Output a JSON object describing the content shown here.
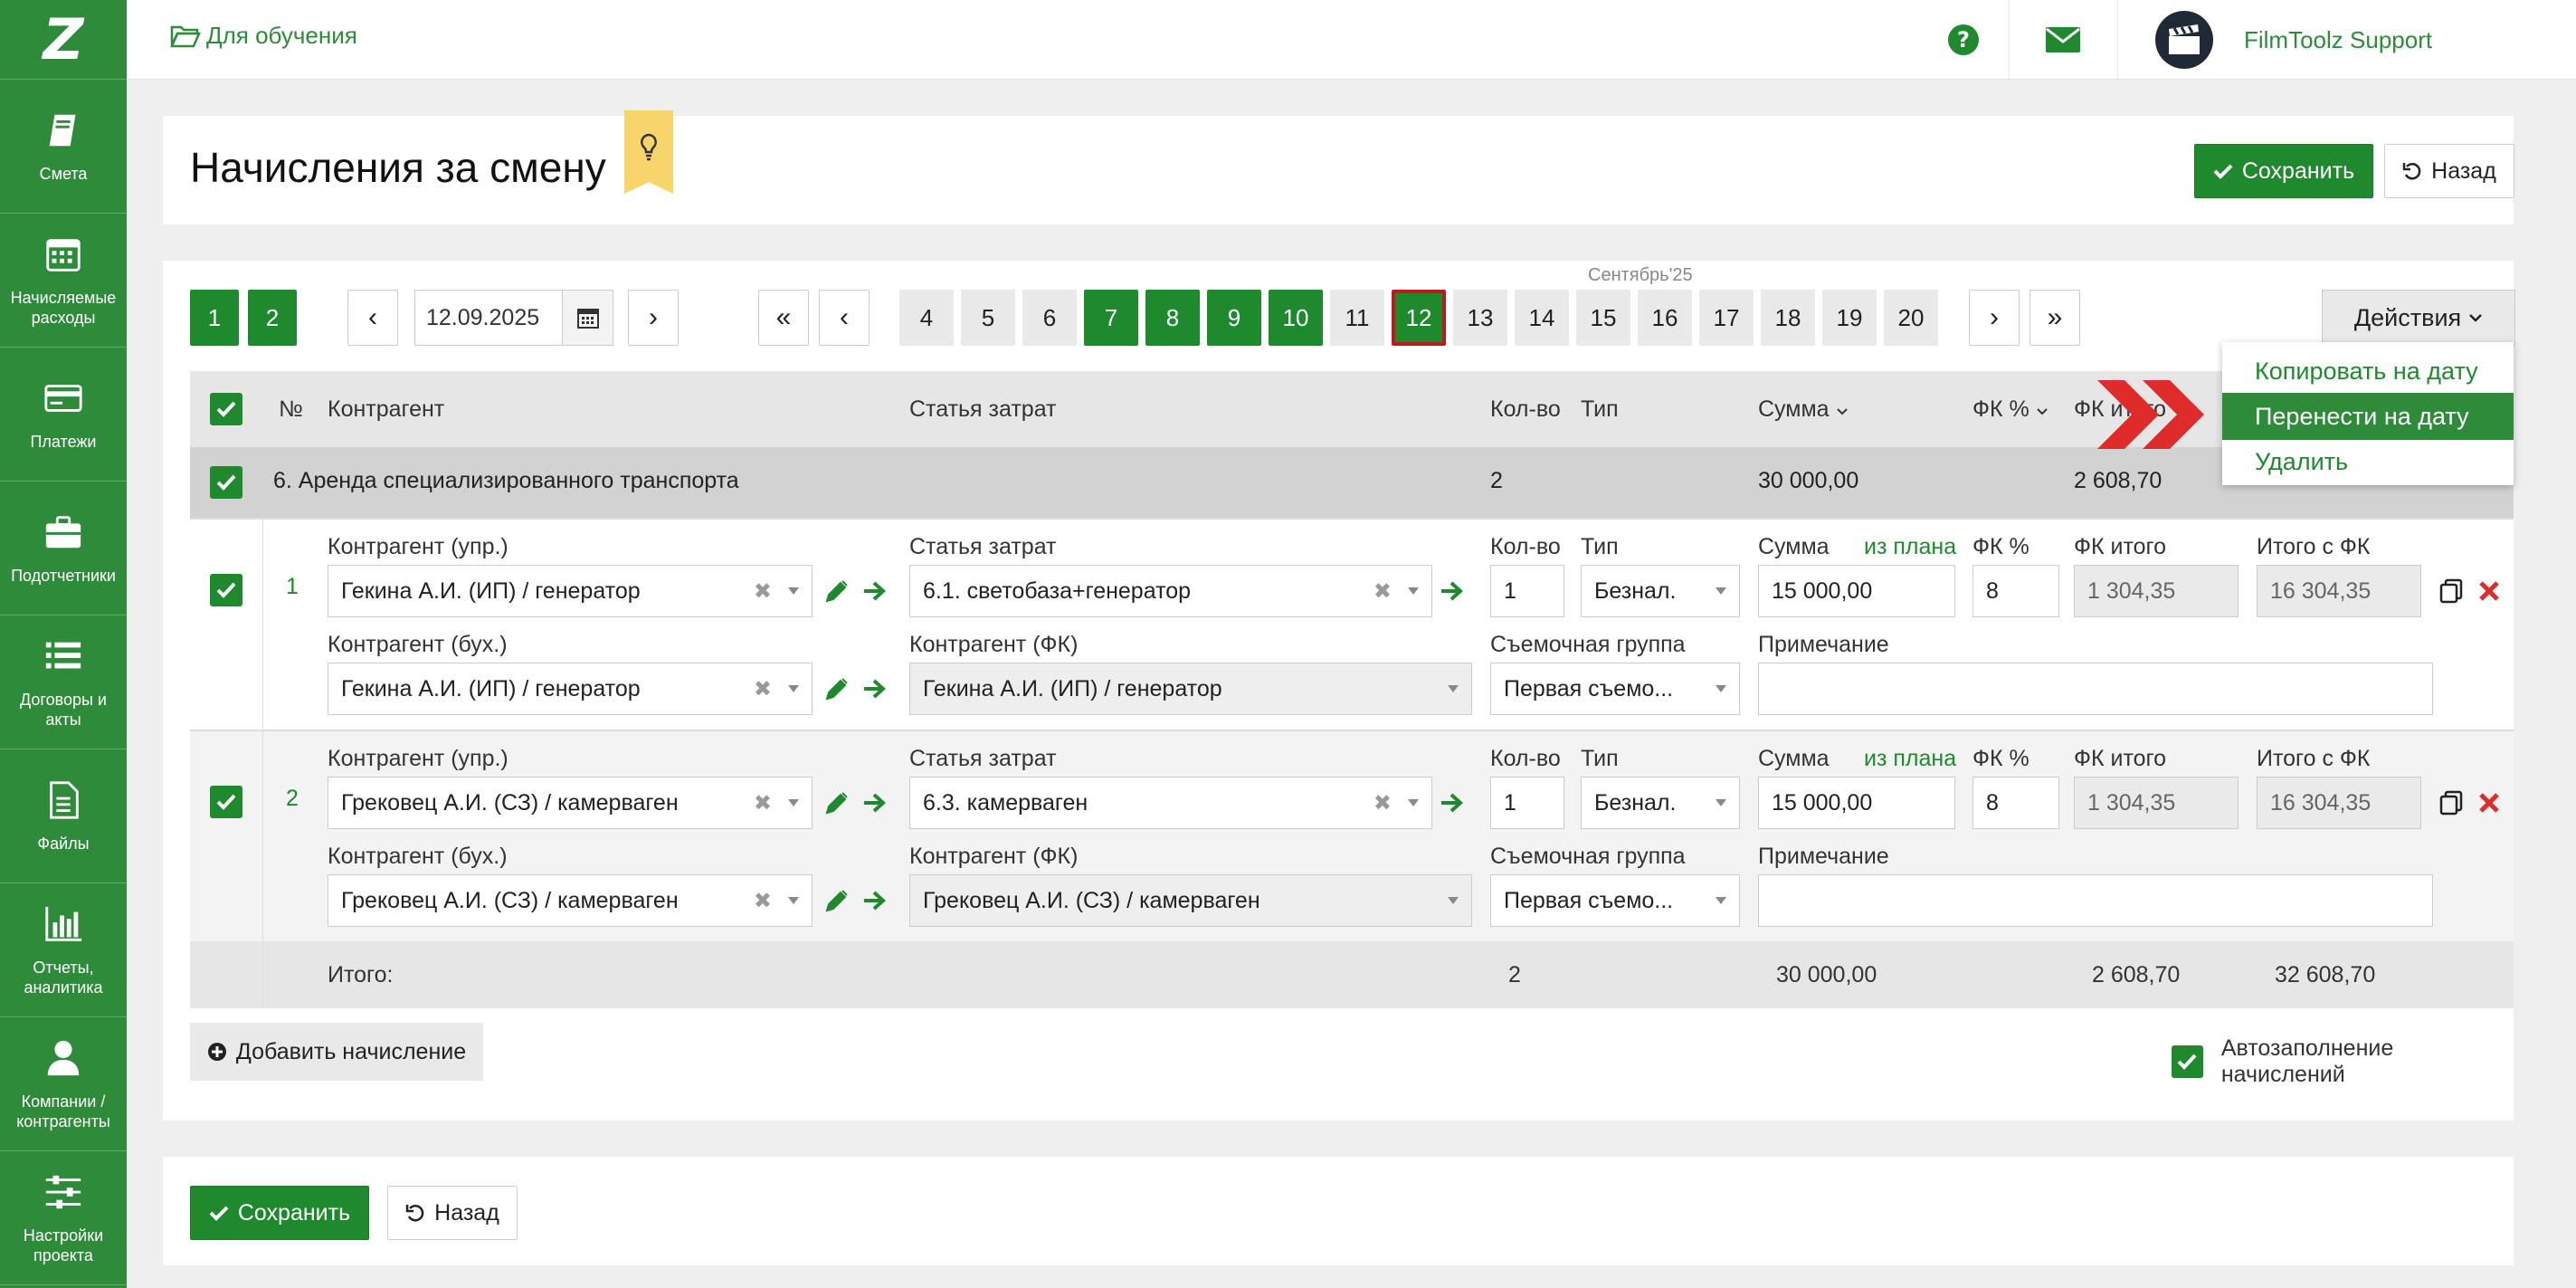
{
  "sidebar": {
    "logo": "Z",
    "items": [
      {
        "label": "Смета",
        "icon": "book-icon"
      },
      {
        "label": "Начисляемые расходы",
        "icon": "calendar-icon"
      },
      {
        "label": "Платежи",
        "icon": "card-icon"
      },
      {
        "label": "Подотчетники",
        "icon": "briefcase-icon"
      },
      {
        "label": "Договоры и акты",
        "icon": "list-icon"
      },
      {
        "label": "Файлы",
        "icon": "file-icon"
      },
      {
        "label": "Отчеты, аналитика",
        "icon": "bar-chart-icon"
      },
      {
        "label": "Компании / контрагенты",
        "icon": "user-icon"
      },
      {
        "label": "Настройки проекта",
        "icon": "sliders-icon"
      }
    ]
  },
  "topbar": {
    "project": "Для обучения",
    "support_name": "FilmToolz Support",
    "lang": "RU"
  },
  "header": {
    "title": "Начисления за смену",
    "save": "Сохранить",
    "back": "Назад"
  },
  "paging": {
    "pages": [
      "1",
      "2"
    ],
    "date": "12.09.2025",
    "month": "Сентябрь'25",
    "prev": "‹",
    "next": "›",
    "first": "«",
    "last": "»",
    "days": [
      {
        "d": "4",
        "s": "empty"
      },
      {
        "d": "5",
        "s": "empty"
      },
      {
        "d": "6",
        "s": "empty"
      },
      {
        "d": "7",
        "s": "has"
      },
      {
        "d": "8",
        "s": "has"
      },
      {
        "d": "9",
        "s": "has"
      },
      {
        "d": "10",
        "s": "has"
      },
      {
        "d": "11",
        "s": "empty"
      },
      {
        "d": "12",
        "s": "current"
      },
      {
        "d": "13",
        "s": "empty"
      },
      {
        "d": "14",
        "s": "empty"
      },
      {
        "d": "15",
        "s": "empty"
      },
      {
        "d": "16",
        "s": "empty"
      },
      {
        "d": "17",
        "s": "empty"
      },
      {
        "d": "18",
        "s": "empty"
      },
      {
        "d": "19",
        "s": "empty"
      },
      {
        "d": "20",
        "s": "empty"
      }
    ],
    "actions": "Действия"
  },
  "dropdown": {
    "items": [
      "Копировать на дату",
      "Перенести на дату",
      "Удалить"
    ],
    "active_index": 1
  },
  "table": {
    "headers": {
      "num": "№",
      "counterparty": "Контрагент",
      "article": "Статья затрат",
      "qty": "Кол-во",
      "type": "Тип",
      "sum": "Сумма",
      "fk_pct": "ФК %",
      "fk_total": "ФК итого"
    },
    "group": {
      "title": "6. Аренда специализированного транспорта",
      "qty": "2",
      "sum": "30 000,00",
      "fk_total": "2 608,70"
    },
    "labels": {
      "cp_mgmt": "Контрагент (упр.)",
      "cp_acc": "Контрагент (бух.)",
      "article": "Статья затрат",
      "cp_fk": "Контрагент (ФК)",
      "qty": "Кол-во",
      "type": "Тип",
      "crew": "Съемочная группа",
      "sum": "Сумма",
      "from_plan": "из плана",
      "fk_pct": "ФК %",
      "note": "Примечание",
      "fk_total": "ФК итого",
      "total_fk": "Итого с ФК"
    },
    "rows": [
      {
        "num": "1",
        "cp_mgmt": "Гекина А.И. (ИП) / генератор",
        "cp_acc": "Гекина А.И. (ИП) / генератор",
        "article": "6.1. светобаза+генератор",
        "cp_fk": "Гекина А.И. (ИП) / генератор",
        "qty": "1",
        "type": "Безнал.",
        "crew": "Первая съемо...",
        "sum": "15 000,00",
        "fk_pct": "8",
        "note": "",
        "fk_total": "1 304,35",
        "total_fk": "16 304,35"
      },
      {
        "num": "2",
        "cp_mgmt": "Грековец А.И. (СЗ) / камерваген",
        "cp_acc": "Грековец А.И. (СЗ) / камерваген",
        "article": "6.3. камерваген",
        "cp_fk": "Грековец А.И. (СЗ) / камерваген",
        "qty": "1",
        "type": "Безнал.",
        "crew": "Первая съемо...",
        "sum": "15 000,00",
        "fk_pct": "8",
        "note": "",
        "fk_total": "1 304,35",
        "total_fk": "16 304,35"
      }
    ],
    "totals": {
      "label": "Итого:",
      "qty": "2",
      "sum": "30 000,00",
      "fk_total": "2 608,70",
      "total_fk": "32 608,70"
    }
  },
  "footer": {
    "add": "Добавить начисление",
    "autofill": "Автозаполнение начислений",
    "save": "Сохранить",
    "back": "Назад"
  },
  "colors": {
    "brand": "#2e8b3a",
    "button": "#1e8a2d",
    "danger": "#e02b2b",
    "highlight": "#c0181b"
  }
}
